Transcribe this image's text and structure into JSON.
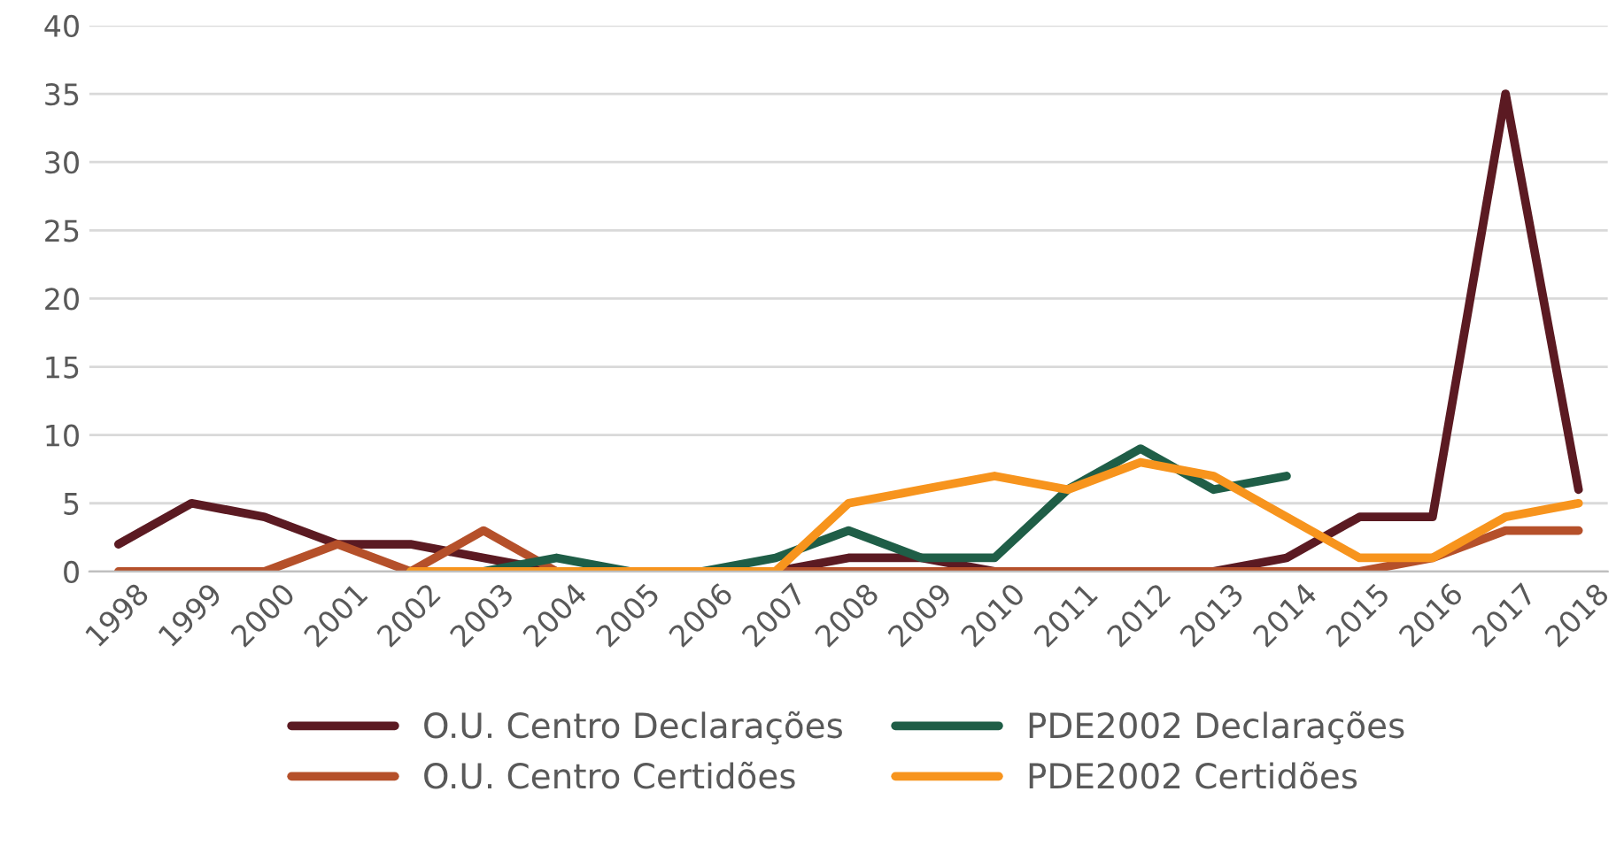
{
  "chart_data": {
    "type": "line",
    "categories": [
      "1998",
      "1999",
      "2000",
      "2001",
      "2002",
      "2003",
      "2004",
      "2005",
      "2006",
      "2007",
      "2008",
      "2009",
      "2010",
      "2011",
      "2012",
      "2013",
      "2014",
      "2015",
      "2016",
      "2017",
      "2018"
    ],
    "series": [
      {
        "name": "O.U. Centro Declarações",
        "color": "#5b1a22",
        "values": [
          2,
          5,
          4,
          2,
          2,
          1,
          0,
          0,
          0,
          0,
          1,
          1,
          0,
          0,
          0,
          0,
          1,
          4,
          4,
          35,
          6
        ]
      },
      {
        "name": "O.U. Centro Certidões",
        "color": "#b5502a",
        "values": [
          0,
          0,
          0,
          2,
          0,
          3,
          0,
          0,
          0,
          0,
          0,
          0,
          0,
          0,
          0,
          0,
          0,
          0,
          1,
          3,
          3
        ]
      },
      {
        "name": "PDE2002 Declarações",
        "color": "#1f5e47",
        "values": [
          null,
          null,
          null,
          null,
          0,
          0,
          1,
          0,
          0,
          1,
          3,
          1,
          1,
          6,
          9,
          6,
          7,
          null,
          null,
          null,
          null
        ]
      },
      {
        "name": "PDE2002 Certidões",
        "color": "#f7941d",
        "values": [
          null,
          null,
          null,
          null,
          0,
          0,
          0,
          0,
          0,
          0,
          5,
          6,
          7,
          6,
          8,
          7,
          4,
          1,
          1,
          4,
          5
        ]
      }
    ],
    "ylim": [
      0,
      40
    ],
    "yticks": [
      0,
      5,
      10,
      15,
      20,
      25,
      30,
      35,
      40
    ],
    "grid": "y",
    "legend": "bottom",
    "marker": "none",
    "line_style": "solid"
  }
}
